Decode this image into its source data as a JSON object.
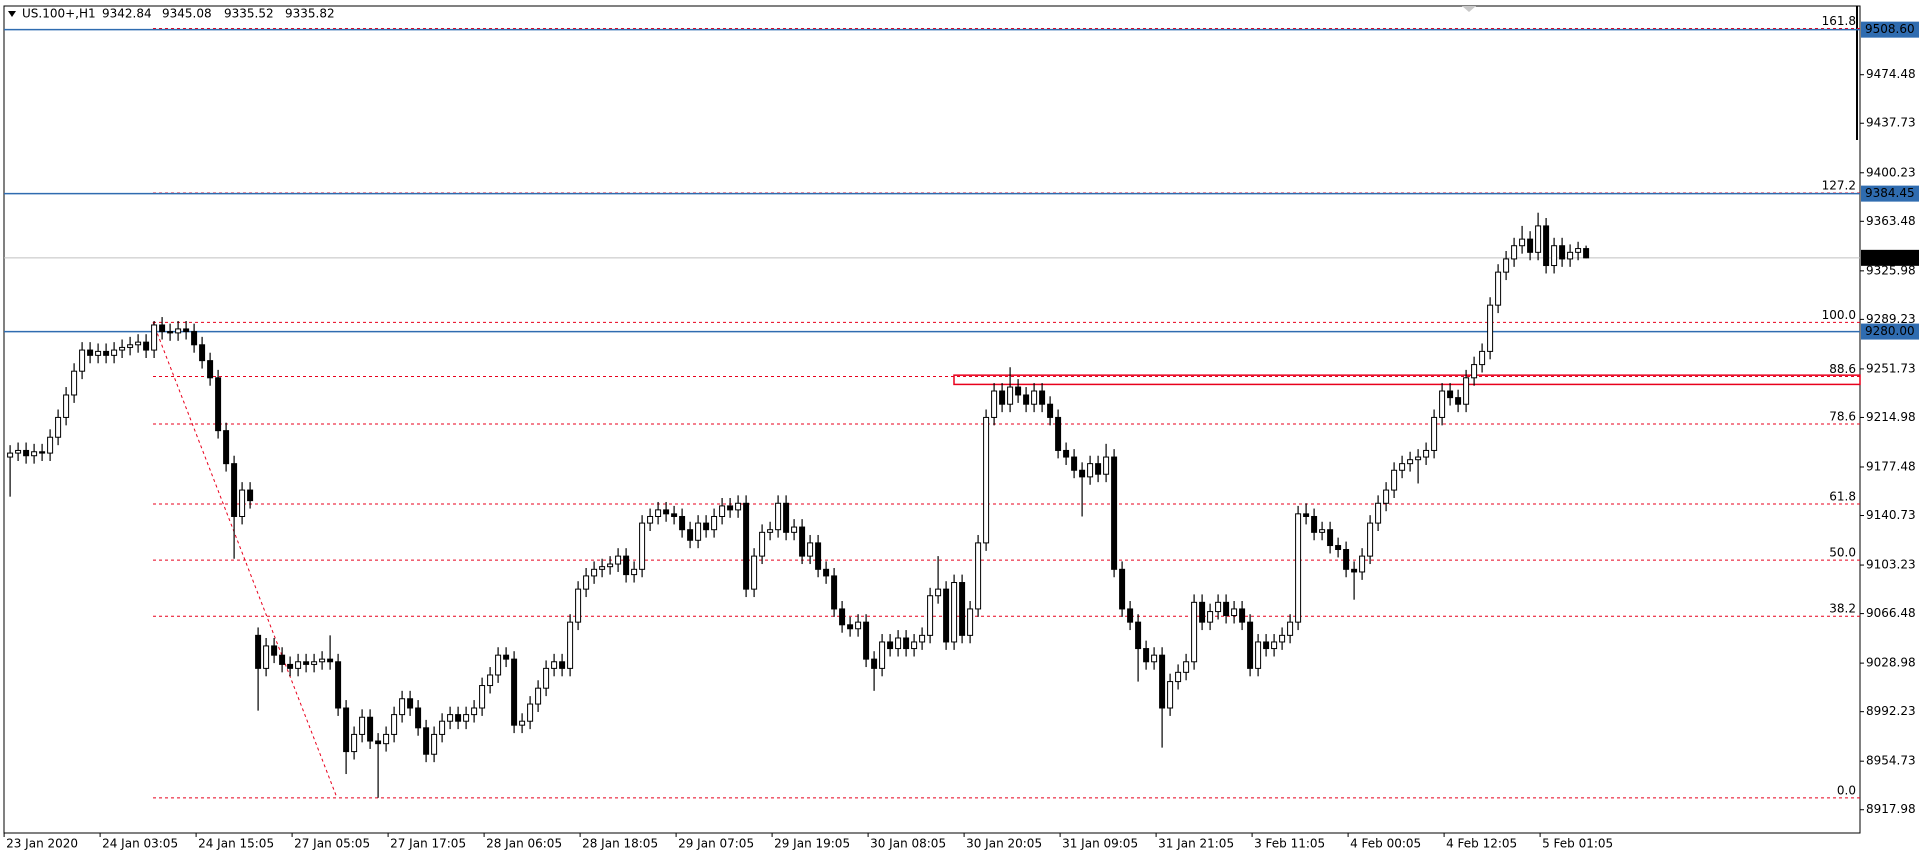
{
  "chart_data": {
    "type": "candlestick",
    "symbol": "US.100+,H1",
    "categories": [
      "23 Jan 2020",
      null,
      null,
      null,
      null,
      null,
      null,
      null,
      null,
      null,
      null,
      null,
      "24 Jan 03:05",
      null,
      null,
      null,
      null,
      null,
      null,
      null,
      null,
      null,
      null,
      null,
      "24 Jan 15:05",
      null,
      null,
      null,
      null,
      null,
      null,
      null,
      null,
      null,
      null,
      null,
      "27 Jan 05:05",
      null,
      null,
      null,
      null,
      null,
      null,
      null,
      null,
      null,
      null,
      null,
      "27 Jan 17:05",
      null,
      null,
      null,
      null,
      null,
      null,
      null,
      null,
      null,
      null,
      null,
      "28 Jan 06:05",
      null,
      null,
      null,
      null,
      null,
      null,
      null,
      null,
      null,
      null,
      null,
      "28 Jan 18:05",
      null,
      null,
      null,
      null,
      null,
      null,
      null,
      null,
      null,
      null,
      null,
      "29 Jan 07:05",
      null,
      null,
      null,
      null,
      null,
      null,
      null,
      null,
      null,
      null,
      null,
      "29 Jan 19:05",
      null,
      null,
      null,
      null,
      null,
      null,
      null,
      null,
      null,
      null,
      null,
      "30 Jan 08:05",
      null,
      null,
      null,
      null,
      null,
      null,
      null,
      null,
      null,
      null,
      null,
      "30 Jan 20:05",
      null,
      null,
      null,
      null,
      null,
      null,
      null,
      null,
      null,
      null,
      null,
      "31 Jan 09:05",
      null,
      null,
      null,
      null,
      null,
      null,
      null,
      null,
      null,
      null,
      null,
      "31 Jan 21:05",
      null,
      null,
      null,
      null,
      null,
      null,
      null,
      null,
      null,
      null,
      null,
      "3 Feb 11:05",
      null,
      null,
      null,
      null,
      null,
      null,
      null,
      null,
      null,
      null,
      null,
      "4 Feb 00:05",
      null,
      null,
      null,
      null,
      null,
      null,
      null,
      null,
      null,
      null,
      null,
      "4 Feb 12:05",
      null,
      null,
      null,
      null,
      null,
      null,
      null,
      null,
      null,
      null,
      null,
      "5 Feb 01:05",
      null,
      null,
      null,
      null,
      null
    ],
    "open": [
      9185,
      9188,
      9190,
      9186,
      9189,
      9188,
      9200,
      9215,
      9232,
      9250,
      9266,
      9262,
      9265,
      9262,
      9266,
      9268,
      9270,
      9272,
      9266,
      9285,
      9280,
      9279,
      9282,
      9280,
      9270,
      9258,
      9245,
      9205,
      9180,
      9140,
      9160,
      9050,
      9025,
      9042,
      9035,
      9028,
      9025,
      9030,
      9028,
      9030,
      9032,
      9030,
      8995,
      8962,
      8975,
      8988,
      8970,
      8968,
      8975,
      8990,
      9002,
      8995,
      8980,
      8960,
      8975,
      8985,
      8990,
      8985,
      8990,
      8995,
      9012,
      9020,
      9035,
      9032,
      8982,
      8985,
      8998,
      9010,
      9025,
      9030,
      9025,
      9060,
      9085,
      9095,
      9100,
      9102,
      9104,
      9110,
      9096,
      9100,
      9135,
      9140,
      9145,
      9142,
      9140,
      9130,
      9122,
      9135,
      9130,
      9140,
      9148,
      9145,
      9150,
      9085,
      9110,
      9128,
      9130,
      9150,
      9128,
      9132,
      9110,
      9120,
      9100,
      9095,
      9070,
      9058,
      9055,
      9060,
      9032,
      9025,
      9045,
      9040,
      9048,
      9040,
      9045,
      9050,
      9080,
      9085,
      9045,
      9090,
      9050,
      9070,
      9120,
      9215,
      9235,
      9225,
      9238,
      9232,
      9225,
      9235,
      9225,
      9215,
      9190,
      9185,
      9175,
      9170,
      9180,
      9172,
      9185,
      9100,
      9070,
      9060,
      9040,
      9030,
      9035,
      8995,
      9015,
      9022,
      9030,
      9075,
      9060,
      9068,
      9075,
      9065,
      9070,
      9060,
      9025,
      9045,
      9040,
      9045,
      9050,
      9060,
      9142,
      9140,
      9128,
      9130,
      9118,
      9115,
      9100,
      9098,
      9110,
      9135,
      9150,
      9160,
      9175,
      9180,
      9183,
      9185,
      9190,
      9215,
      9235,
      9230,
      9225,
      9245,
      9255,
      9265,
      9300,
      9325,
      9335,
      9345,
      9350,
      9340,
      9360,
      9330,
      9345,
      9335,
      9340,
      9342.84
    ],
    "high": [
      9194,
      9196,
      9196,
      9195,
      9195,
      9206,
      9221,
      9238,
      9256,
      9272,
      9272,
      9271,
      9271,
      9272,
      9274,
      9276,
      9278,
      9278,
      9288,
      9291,
      9286,
      9288,
      9288,
      9286,
      9276,
      9264,
      9251,
      9211,
      9186,
      9166,
      9166,
      9056,
      9048,
      9048,
      9041,
      9034,
      9036,
      9036,
      9036,
      9038,
      9050,
      9036,
      9001,
      8981,
      8994,
      8994,
      8976,
      8981,
      8996,
      9008,
      9008,
      9001,
      8986,
      8981,
      8991,
      8996,
      8996,
      8996,
      9001,
      9018,
      9026,
      9041,
      9041,
      9038,
      8991,
      9004,
      9016,
      9031,
      9036,
      9036,
      9066,
      9091,
      9101,
      9106,
      9108,
      9110,
      9116,
      9116,
      9106,
      9141,
      9146,
      9151,
      9151,
      9148,
      9146,
      9136,
      9141,
      9141,
      9146,
      9154,
      9154,
      9156,
      9156,
      9116,
      9134,
      9136,
      9156,
      9156,
      9138,
      9138,
      9126,
      9126,
      9106,
      9101,
      9076,
      9064,
      9066,
      9066,
      9038,
      9051,
      9051,
      9054,
      9054,
      9051,
      9056,
      9086,
      9110,
      9091,
      9096,
      9096,
      9076,
      9126,
      9221,
      9241,
      9241,
      9253,
      9244,
      9238,
      9241,
      9241,
      9231,
      9221,
      9196,
      9191,
      9181,
      9186,
      9186,
      9195,
      9191,
      9106,
      9076,
      9066,
      9046,
      9041,
      9041,
      9021,
      9028,
      9036,
      9081,
      9081,
      9074,
      9081,
      9081,
      9076,
      9076,
      9066,
      9051,
      9051,
      9051,
      9056,
      9066,
      9148,
      9150,
      9146,
      9136,
      9136,
      9124,
      9121,
      9106,
      9116,
      9141,
      9156,
      9166,
      9181,
      9186,
      9189,
      9191,
      9196,
      9221,
      9241,
      9241,
      9236,
      9251,
      9261,
      9271,
      9306,
      9331,
      9341,
      9351,
      9360,
      9356,
      9370,
      9366,
      9351,
      9351,
      9346,
      9348,
      9345.08
    ],
    "low": [
      9155,
      9182,
      9180,
      9180,
      9182,
      9182,
      9194,
      9209,
      9226,
      9244,
      9256,
      9256,
      9256,
      9256,
      9260,
      9262,
      9264,
      9260,
      9260,
      9274,
      9273,
      9273,
      9274,
      9264,
      9252,
      9239,
      9199,
      9174,
      9108,
      9134,
      9146,
      8993,
      9019,
      9029,
      9022,
      9019,
      9019,
      9022,
      9022,
      9024,
      9024,
      8989,
      8945,
      8956,
      8969,
      8964,
      8927,
      8962,
      8969,
      8984,
      8989,
      8974,
      8954,
      8954,
      8969,
      8979,
      8979,
      8979,
      8984,
      8989,
      9006,
      9014,
      9026,
      8976,
      8976,
      8979,
      8992,
      9004,
      9019,
      9019,
      9019,
      9054,
      9079,
      9089,
      9094,
      9096,
      9098,
      9090,
      9090,
      9094,
      9129,
      9134,
      9136,
      9134,
      9124,
      9116,
      9116,
      9124,
      9124,
      9134,
      9139,
      9139,
      9079,
      9079,
      9104,
      9122,
      9124,
      9122,
      9122,
      9104,
      9104,
      9094,
      9089,
      9064,
      9052,
      9049,
      9049,
      9026,
      9008,
      9019,
      9034,
      9034,
      9034,
      9034,
      9039,
      9044,
      9074,
      9039,
      9039,
      9044,
      9044,
      9064,
      9114,
      9209,
      9219,
      9219,
      9226,
      9219,
      9219,
      9219,
      9209,
      9184,
      9179,
      9169,
      9140,
      9164,
      9166,
      9166,
      9094,
      9064,
      9054,
      9015,
      9024,
      9024,
      8965,
      8989,
      9009,
      9016,
      9024,
      9054,
      9054,
      9062,
      9059,
      9059,
      9054,
      9019,
      9019,
      9034,
      9034,
      9039,
      9044,
      9054,
      9134,
      9122,
      9122,
      9112,
      9109,
      9094,
      9077,
      9092,
      9104,
      9129,
      9144,
      9154,
      9169,
      9174,
      9165,
      9179,
      9184,
      9209,
      9224,
      9219,
      9219,
      9239,
      9249,
      9259,
      9294,
      9319,
      9329,
      9339,
      9334,
      9334,
      9324,
      9324,
      9329,
      9329,
      9334,
      9335.52
    ],
    "close": [
      9188,
      9190,
      9186,
      9189,
      9188,
      9200,
      9215,
      9232,
      9250,
      9266,
      9262,
      9265,
      9262,
      9266,
      9268,
      9270,
      9272,
      9266,
      9285,
      9280,
      9279,
      9282,
      9280,
      9270,
      9258,
      9245,
      9205,
      9180,
      9140,
      9160,
      9152,
      9025,
      9042,
      9035,
      9028,
      9025,
      9030,
      9028,
      9030,
      9032,
      9030,
      8995,
      8962,
      8975,
      8988,
      8970,
      8968,
      8975,
      8990,
      9002,
      8995,
      8980,
      8960,
      8975,
      8985,
      8990,
      8985,
      8990,
      8995,
      9012,
      9020,
      9035,
      9032,
      8982,
      8985,
      8998,
      9010,
      9025,
      9030,
      9025,
      9060,
      9085,
      9095,
      9100,
      9102,
      9104,
      9110,
      9096,
      9100,
      9135,
      9140,
      9145,
      9142,
      9140,
      9130,
      9122,
      9135,
      9130,
      9140,
      9148,
      9145,
      9150,
      9085,
      9110,
      9128,
      9130,
      9150,
      9128,
      9132,
      9110,
      9120,
      9100,
      9095,
      9070,
      9058,
      9055,
      9060,
      9032,
      9025,
      9045,
      9040,
      9048,
      9040,
      9045,
      9050,
      9080,
      9085,
      9045,
      9090,
      9050,
      9070,
      9120,
      9215,
      9235,
      9225,
      9238,
      9232,
      9225,
      9235,
      9225,
      9215,
      9190,
      9185,
      9175,
      9170,
      9180,
      9172,
      9185,
      9100,
      9070,
      9060,
      9040,
      9030,
      9035,
      8995,
      9015,
      9022,
      9030,
      9075,
      9060,
      9068,
      9075,
      9065,
      9070,
      9060,
      9025,
      9045,
      9040,
      9045,
      9050,
      9060,
      9142,
      9140,
      9128,
      9130,
      9118,
      9115,
      9100,
      9098,
      9110,
      9135,
      9150,
      9160,
      9175,
      9180,
      9183,
      9185,
      9190,
      9215,
      9235,
      9230,
      9225,
      9245,
      9255,
      9265,
      9300,
      9325,
      9335,
      9345,
      9350,
      9340,
      9360,
      9330,
      9345,
      9335,
      9340,
      9342.84,
      9335.82
    ],
    "ylim": [
      8900.36,
      9526.5
    ],
    "yticks": [
      9474.48,
      9437.73,
      9400.23,
      9363.48,
      9325.98,
      9289.23,
      9251.73,
      9214.98,
      9177.48,
      9140.73,
      9103.23,
      9066.48,
      9028.98,
      8992.23,
      8954.73,
      8917.98
    ],
    "hlines": [
      {
        "value": 9508.6,
        "label": "9508.60"
      },
      {
        "value": 9384.45,
        "label": "9384.45"
      },
      {
        "value": 9280,
        "label": "9280.00"
      }
    ],
    "hline_color": "#2f6cb0",
    "fib": [
      {
        "label": "161.8",
        "price": 9509.5
      },
      {
        "label": "127.2",
        "price": 9384.9
      },
      {
        "label": "100.0",
        "price": 9287
      },
      {
        "label": "88.6",
        "price": 9246
      },
      {
        "label": "78.6",
        "price": 9210
      },
      {
        "label": "61.8",
        "price": 9149.5
      },
      {
        "label": "50.0",
        "price": 9107
      },
      {
        "label": "38.2",
        "price": 9064.5
      },
      {
        "label": "0.0",
        "price": 8927
      }
    ],
    "fib_color": "#e8001c",
    "zone": {
      "top": 9247,
      "bottom": 9240,
      "color": "#e8001c"
    },
    "bull_color": "#ffffff",
    "bear_color": "#000000"
  }
}
